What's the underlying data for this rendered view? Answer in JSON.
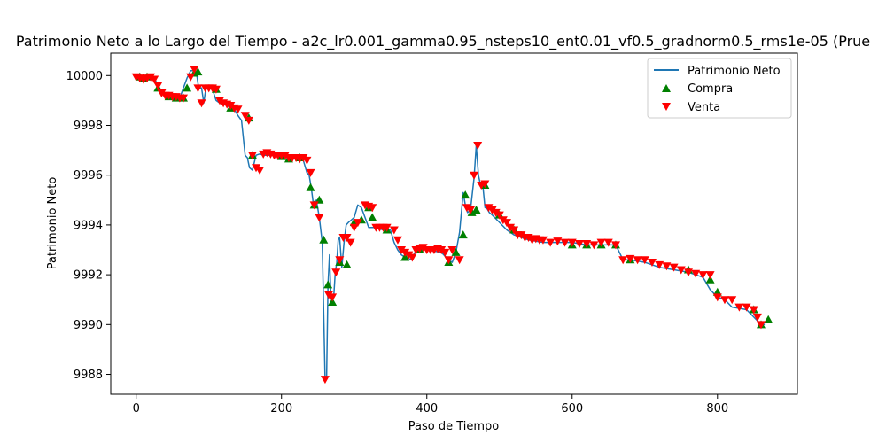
{
  "chart_data": {
    "type": "line",
    "title": "Patrimonio Neto a lo Largo del Tiempo - a2c_lr0.001_gamma0.95_nsteps10_ent0.01_vf0.5_gradnorm0.5_rms1e-05 (Prue",
    "xlabel": "Paso de Tiempo",
    "ylabel": "Patrimonio Neto",
    "xlim": [
      -35,
      910
    ],
    "ylim": [
      9987.2,
      10000.9
    ],
    "xticks": [
      0,
      200,
      400,
      600,
      800
    ],
    "yticks": [
      9988,
      9990,
      9992,
      9994,
      9996,
      9998,
      10000
    ],
    "legend_position": "top-right",
    "grid": false,
    "colors": {
      "line": "#1f77b4",
      "buy": "#008000",
      "sell": "#ff0000"
    },
    "series": [
      {
        "name": "Patrimonio Neto",
        "kind": "line",
        "x": [
          0,
          10,
          20,
          25,
          30,
          35,
          40,
          45,
          50,
          55,
          60,
          65,
          70,
          75,
          80,
          83,
          86,
          90,
          93,
          96,
          100,
          105,
          110,
          115,
          120,
          125,
          130,
          135,
          140,
          145,
          150,
          153,
          156,
          160,
          165,
          170,
          175,
          180,
          190,
          200,
          210,
          220,
          230,
          235,
          238,
          241,
          244,
          248,
          252,
          256,
          260,
          262,
          264,
          266,
          268,
          270,
          272,
          274,
          276,
          278,
          280,
          283,
          286,
          289,
          292,
          296,
          300,
          305,
          310,
          315,
          320,
          325,
          330,
          340,
          350,
          355,
          360,
          365,
          370,
          380,
          385,
          390,
          400,
          410,
          420,
          430,
          435,
          440,
          445,
          450,
          453,
          456,
          460,
          465,
          468,
          471,
          474,
          477,
          480,
          483,
          486,
          490,
          500,
          510,
          520,
          530,
          540,
          560,
          580,
          600,
          620,
          640,
          660,
          665,
          670,
          680,
          700,
          720,
          740,
          760,
          780,
          790,
          800,
          810,
          820,
          830,
          840,
          850,
          860,
          865
        ],
        "values": [
          9999.95,
          9999.9,
          9999.95,
          9999.9,
          9999.6,
          9999.3,
          9999.2,
          9999.15,
          9999.15,
          9999.1,
          9999.1,
          9999.5,
          9999.9,
          10000.2,
          10000.2,
          10000.1,
          9999.5,
          9999.5,
          9998.9,
          9999.5,
          9999.5,
          9999.45,
          9999.0,
          9998.9,
          9998.85,
          9998.8,
          9998.7,
          9998.65,
          9998.4,
          9998.2,
          9996.8,
          9996.7,
          9996.3,
          9996.2,
          9996.8,
          9996.85,
          9996.8,
          9996.8,
          9996.8,
          9996.7,
          9996.7,
          9996.65,
          9996.6,
          9996.1,
          9996.0,
          9995.5,
          9994.8,
          9995.0,
          9994.3,
          9993.3,
          9987.8,
          9987.8,
          9991.6,
          9992.8,
          9991.1,
          9990.9,
          9991.2,
          9992.1,
          9992.5,
          9993.4,
          9993.5,
          9992.3,
          9993.3,
          9994.0,
          9994.1,
          9994.2,
          9994.3,
          9994.8,
          9994.7,
          9994.3,
          9993.9,
          9993.9,
          9993.9,
          9993.8,
          9993.8,
          9993.3,
          9993.0,
          9992.8,
          9992.7,
          9992.6,
          9993.0,
          9993.0,
          9993.0,
          9992.95,
          9992.9,
          9992.6,
          9992.5,
          9992.9,
          9993.7,
          9995.3,
          9994.8,
          9994.5,
          9994.6,
          9995.9,
          9997.2,
          9996.0,
          9995.6,
          9995.6,
          9994.7,
          9994.65,
          9994.5,
          9994.4,
          9994.1,
          9993.8,
          9993.6,
          9993.5,
          9993.4,
          9993.3,
          9993.3,
          9993.3,
          9993.2,
          9993.2,
          9993.2,
          9992.9,
          9992.6,
          9992.6,
          9992.5,
          9992.3,
          9992.2,
          9992.1,
          9991.9,
          9991.4,
          9991.1,
          9991.0,
          9990.7,
          9990.65,
          9990.6,
          9990.3,
          9990.0,
          9990.0
        ]
      },
      {
        "name": "Compra",
        "kind": "scatter",
        "marker": "triangle-up",
        "x": [
          5,
          10,
          15,
          30,
          45,
          55,
          65,
          70,
          80,
          85,
          110,
          130,
          155,
          160,
          200,
          210,
          225,
          240,
          245,
          252,
          258,
          264,
          270,
          280,
          290,
          300,
          310,
          320,
          325,
          345,
          370,
          390,
          430,
          440,
          450,
          453,
          462,
          468,
          480,
          500,
          520,
          600,
          620,
          640,
          660,
          680,
          760,
          790,
          800,
          850,
          860,
          870
        ],
        "values": [
          9999.95,
          9999.9,
          9999.95,
          9999.5,
          9999.15,
          9999.1,
          9999.1,
          9999.5,
          10000.1,
          10000.15,
          9999.45,
          9998.7,
          9998.3,
          9996.8,
          9996.75,
          9996.65,
          9996.7,
          9995.5,
          9994.8,
          9995.0,
          9993.4,
          9991.6,
          9990.9,
          9992.5,
          9992.4,
          9994.1,
          9994.2,
          9994.7,
          9994.3,
          9993.8,
          9992.7,
          9993.0,
          9992.5,
          9992.9,
          9993.6,
          9995.2,
          9994.5,
          9994.6,
          9995.6,
          9994.4,
          9993.8,
          9993.2,
          9993.2,
          9993.2,
          9993.2,
          9992.6,
          9992.2,
          9991.8,
          9991.3,
          9990.6,
          9990.0,
          9990.2
        ]
      },
      {
        "name": "Venta",
        "kind": "scatter",
        "marker": "triangle-down",
        "x": [
          0,
          5,
          10,
          15,
          20,
          25,
          30,
          35,
          40,
          45,
          50,
          55,
          60,
          65,
          75,
          80,
          85,
          90,
          95,
          100,
          105,
          110,
          115,
          120,
          125,
          130,
          135,
          140,
          150,
          155,
          160,
          165,
          170,
          175,
          180,
          185,
          190,
          195,
          200,
          205,
          210,
          215,
          220,
          225,
          230,
          235,
          240,
          245,
          252,
          260,
          265,
          270,
          275,
          280,
          285,
          290,
          295,
          300,
          305,
          315,
          320,
          325,
          330,
          335,
          340,
          345,
          355,
          360,
          365,
          370,
          375,
          380,
          385,
          390,
          395,
          400,
          405,
          410,
          415,
          420,
          425,
          430,
          435,
          445,
          455,
          460,
          465,
          470,
          475,
          480,
          485,
          490,
          495,
          500,
          505,
          510,
          515,
          520,
          525,
          530,
          535,
          540,
          545,
          550,
          555,
          560,
          570,
          580,
          590,
          600,
          610,
          620,
          630,
          640,
          650,
          660,
          670,
          680,
          690,
          700,
          710,
          720,
          730,
          740,
          750,
          760,
          770,
          780,
          790,
          800,
          810,
          820,
          830,
          840,
          850,
          855,
          860
        ],
        "values": [
          9999.95,
          9999.9,
          9999.85,
          9999.9,
          9999.95,
          9999.85,
          9999.6,
          9999.3,
          9999.2,
          9999.2,
          9999.15,
          9999.15,
          9999.1,
          9999.1,
          9999.95,
          10000.25,
          9999.5,
          9998.9,
          9999.5,
          9999.5,
          9999.5,
          9999.45,
          9999.0,
          9998.9,
          9998.85,
          9998.8,
          9998.7,
          9998.65,
          9998.4,
          9998.2,
          9996.8,
          9996.3,
          9996.2,
          9996.85,
          9996.9,
          9996.85,
          9996.8,
          9996.8,
          9996.8,
          9996.8,
          9996.7,
          9996.7,
          9996.7,
          9996.65,
          9996.7,
          9996.6,
          9996.1,
          9994.8,
          9994.3,
          9987.8,
          9991.2,
          9991.1,
          9992.1,
          9992.6,
          9993.5,
          9993.5,
          9993.3,
          9993.9,
          9994.1,
          9994.8,
          9994.75,
          9994.7,
          9993.9,
          9993.9,
          9993.9,
          9993.9,
          9993.8,
          9993.4,
          9993.0,
          9992.9,
          9992.8,
          9992.7,
          9993.0,
          9993.05,
          9993.1,
          9993.0,
          9993.0,
          9993.0,
          9993.05,
          9993.0,
          9992.9,
          9992.6,
          9993.0,
          9992.6,
          9994.7,
          9994.6,
          9996.0,
          9997.2,
          9995.6,
          9995.65,
          9994.7,
          9994.6,
          9994.5,
          9994.4,
          9994.2,
          9994.1,
          9993.9,
          9993.8,
          9993.6,
          9993.6,
          9993.5,
          9993.5,
          9993.4,
          9993.45,
          9993.4,
          9993.4,
          9993.3,
          9993.35,
          9993.3,
          9993.3,
          9993.25,
          9993.25,
          9993.2,
          9993.3,
          9993.3,
          9993.2,
          9992.6,
          9992.65,
          9992.6,
          9992.6,
          9992.5,
          9992.4,
          9992.35,
          9992.3,
          9992.2,
          9992.1,
          9992.05,
          9992.0,
          9992.0,
          9991.1,
          9991.0,
          9991.0,
          9990.7,
          9990.7,
          9990.6,
          9990.3,
          9990.0
        ]
      }
    ]
  }
}
